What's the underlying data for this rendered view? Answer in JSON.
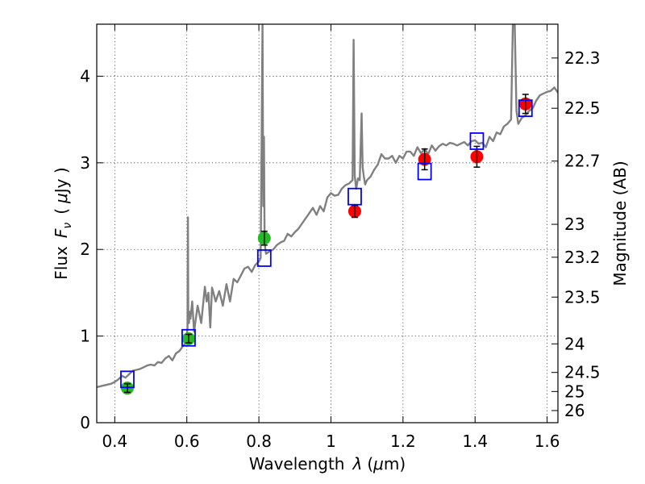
{
  "chart_data": {
    "type": "scatter",
    "xlabel_text": "Wavelength",
    "xlabel_symbol": "λ",
    "xlabel_unit_open": "(",
    "xlabel_unit_mu": "μ",
    "xlabel_unit_rest": "m)",
    "ylabel_text": "Flux",
    "ylabel_symbol": "F",
    "ylabel_sub": "ν",
    "ylabel_unit_open": "(",
    "ylabel_unit_mu": "μ",
    "ylabel_unit_rest": "Jy )",
    "y2label": "Magnitude (AB)",
    "xlim": [
      0.35,
      1.63
    ],
    "ylim": [
      0,
      4.6
    ],
    "grid": true,
    "xticks": [
      0.4,
      0.6,
      0.8,
      1.0,
      1.2,
      1.4,
      1.6
    ],
    "xtick_labels": [
      "0.4",
      "0.6",
      "0.8",
      "1",
      "1.2",
      "1.4",
      "1.6"
    ],
    "yticks": [
      0,
      1,
      2,
      3,
      4
    ],
    "ytick_labels": [
      "0",
      "1",
      "2",
      "3",
      "4"
    ],
    "magnitude_ticks": [
      {
        "label": "22.3",
        "flux": 4.21
      },
      {
        "label": "22.5",
        "flux": 3.63
      },
      {
        "label": "22.7",
        "flux": 3.02
      },
      {
        "label": "23",
        "flux": 2.29
      },
      {
        "label": "23.2",
        "flux": 1.91
      },
      {
        "label": "23.5",
        "flux": 1.45
      },
      {
        "label": "24",
        "flux": 0.91
      },
      {
        "label": "24.5",
        "flux": 0.58
      },
      {
        "label": "25",
        "flux": 0.36
      },
      {
        "label": "26",
        "flux": 0.14
      }
    ],
    "series": [
      {
        "kind": "line",
        "color": "#808080",
        "x": [
          0.35,
          0.37,
          0.39,
          0.4,
          0.41,
          0.42,
          0.43,
          0.44,
          0.45,
          0.46,
          0.47,
          0.48,
          0.49,
          0.5,
          0.51,
          0.52,
          0.53,
          0.54,
          0.55,
          0.56,
          0.57,
          0.58,
          0.59,
          0.598,
          0.602,
          0.603,
          0.604,
          0.606,
          0.608,
          0.61,
          0.615,
          0.62,
          0.63,
          0.635,
          0.64,
          0.65,
          0.655,
          0.66,
          0.665,
          0.67,
          0.68,
          0.69,
          0.7,
          0.71,
          0.72,
          0.73,
          0.74,
          0.75,
          0.76,
          0.77,
          0.78,
          0.79,
          0.8,
          0.805,
          0.808,
          0.81,
          0.812,
          0.814,
          0.816,
          0.818,
          0.82,
          0.83,
          0.84,
          0.85,
          0.86,
          0.87,
          0.88,
          0.89,
          0.9,
          0.91,
          0.92,
          0.93,
          0.94,
          0.95,
          0.96,
          0.97,
          0.98,
          0.99,
          1.0,
          1.01,
          1.02,
          1.03,
          1.04,
          1.05,
          1.06,
          1.063,
          1.066,
          1.07,
          1.075,
          1.08,
          1.085,
          1.088,
          1.091,
          1.095,
          1.1,
          1.11,
          1.12,
          1.13,
          1.14,
          1.15,
          1.16,
          1.17,
          1.18,
          1.19,
          1.2,
          1.21,
          1.22,
          1.23,
          1.24,
          1.25,
          1.26,
          1.27,
          1.28,
          1.29,
          1.3,
          1.31,
          1.32,
          1.33,
          1.34,
          1.35,
          1.36,
          1.37,
          1.38,
          1.39,
          1.4,
          1.41,
          1.42,
          1.43,
          1.44,
          1.45,
          1.46,
          1.47,
          1.48,
          1.49,
          1.5,
          1.505,
          1.51,
          1.515,
          1.52,
          1.53,
          1.54,
          1.55,
          1.56,
          1.57,
          1.58,
          1.59,
          1.6,
          1.61,
          1.62,
          1.63
        ],
        "y": [
          0.41,
          0.43,
          0.45,
          0.47,
          0.5,
          0.54,
          0.52,
          0.56,
          0.6,
          0.61,
          0.62,
          0.64,
          0.66,
          0.67,
          0.66,
          0.7,
          0.69,
          0.74,
          0.77,
          0.72,
          0.8,
          0.83,
          0.89,
          0.92,
          1.1,
          2.37,
          1.3,
          1.15,
          1.28,
          1.2,
          1.4,
          1.05,
          1.35,
          1.25,
          1.15,
          1.57,
          1.4,
          1.5,
          1.1,
          1.56,
          1.4,
          1.52,
          1.35,
          1.6,
          1.4,
          1.66,
          1.62,
          1.7,
          1.78,
          1.8,
          1.74,
          1.82,
          1.86,
          1.9,
          3.5,
          4.6,
          2.5,
          3.3,
          2.1,
          2.0,
          1.95,
          1.98,
          2.0,
          2.05,
          2.08,
          2.1,
          2.18,
          2.15,
          2.2,
          2.24,
          2.3,
          2.36,
          2.42,
          2.48,
          2.4,
          2.5,
          2.44,
          2.6,
          2.65,
          2.62,
          2.63,
          2.7,
          2.74,
          2.76,
          2.8,
          4.42,
          2.85,
          2.7,
          2.82,
          2.8,
          3.57,
          2.95,
          2.85,
          2.75,
          2.8,
          2.84,
          2.92,
          2.98,
          3.1,
          3.05,
          3.05,
          3.08,
          3.0,
          3.08,
          3.05,
          3.13,
          3.13,
          3.08,
          3.18,
          3.11,
          3.16,
          3.1,
          3.2,
          3.14,
          3.19,
          3.22,
          3.2,
          3.23,
          3.22,
          3.2,
          3.22,
          3.24,
          3.2,
          3.25,
          3.26,
          3.22,
          3.23,
          3.18,
          3.3,
          3.25,
          3.35,
          3.33,
          3.42,
          3.45,
          3.5,
          4.6,
          4.6,
          3.6,
          3.45,
          3.52,
          3.55,
          3.6,
          3.63,
          3.72,
          3.78,
          3.8,
          3.82,
          3.83,
          3.87,
          3.81
        ]
      },
      {
        "kind": "scatter",
        "marker": "circle",
        "color": "#22bb22",
        "x": [
          0.435,
          0.605,
          0.815
        ],
        "y": [
          0.4,
          0.97,
          2.13
        ],
        "yerr": [
          0.05,
          0.05,
          0.08
        ]
      },
      {
        "kind": "scatter",
        "marker": "circle",
        "color": "#ff0000",
        "x": [
          1.066,
          1.26,
          1.405,
          1.54
        ],
        "y": [
          2.44,
          3.04,
          3.07,
          3.68
        ],
        "yerr": [
          0.07,
          0.12,
          0.12,
          0.11
        ]
      },
      {
        "kind": "scatter",
        "marker": "open-square",
        "color": "#0000ff",
        "x": [
          0.435,
          0.605,
          0.815,
          1.066,
          1.26,
          1.405,
          1.54
        ],
        "y": [
          0.5,
          0.98,
          1.9,
          2.61,
          2.9,
          3.25,
          3.63
        ]
      }
    ]
  }
}
